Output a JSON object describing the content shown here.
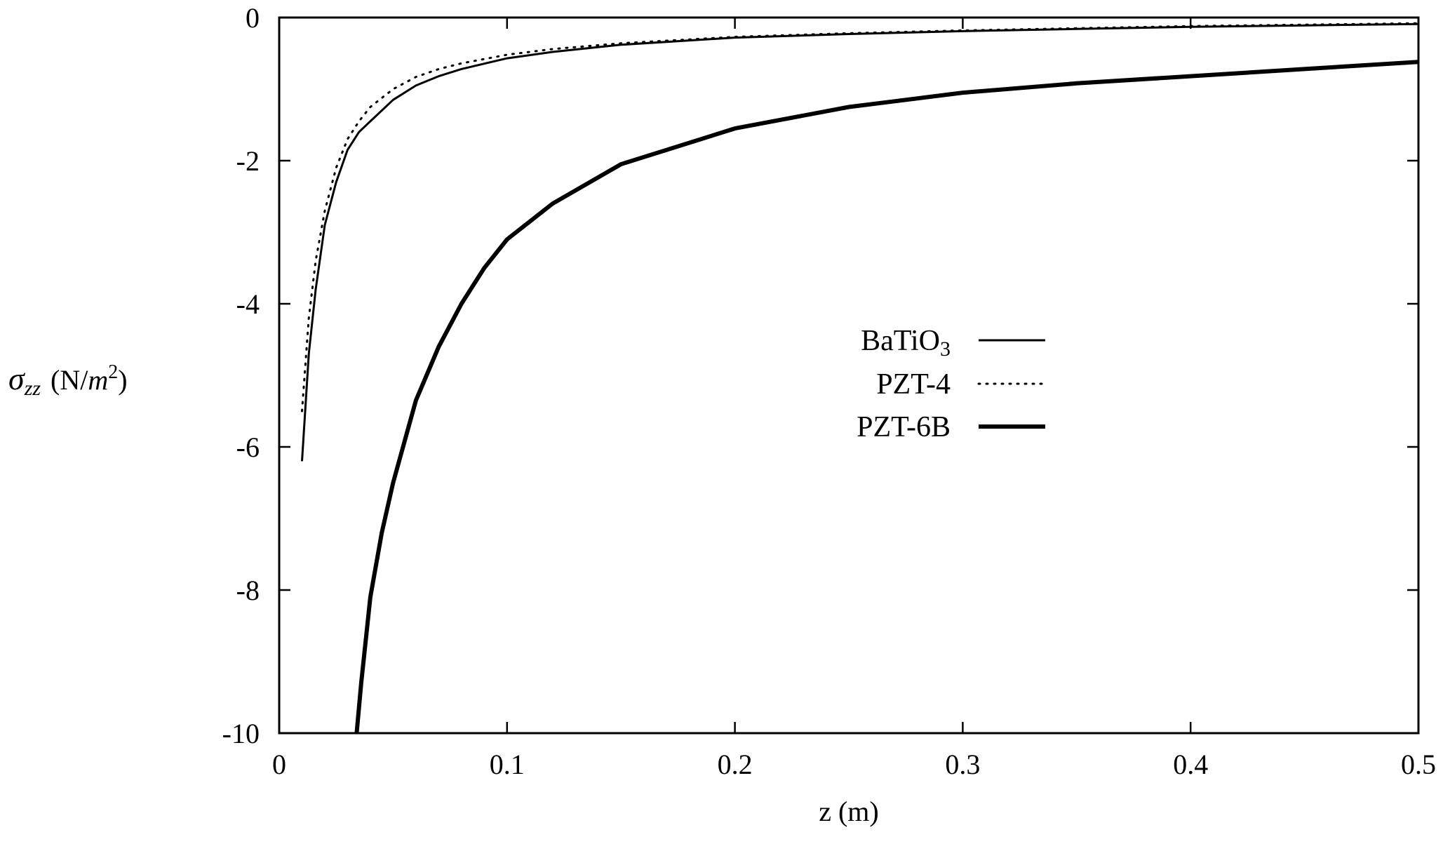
{
  "chart_data": {
    "type": "line",
    "xlabel": "z (m)",
    "ylabel": {
      "sigma": "σ",
      "sub": "zz",
      "units_open": "(N/",
      "units_m": "m",
      "units_exp": "2",
      "units_close": ")"
    },
    "xlim": [
      0,
      0.5
    ],
    "ylim": [
      -10,
      0
    ],
    "x_ticks": [
      0,
      0.1,
      0.2,
      0.3,
      0.4,
      0.5
    ],
    "x_tick_labels": [
      "0",
      "0.1",
      "0.2",
      "0.3",
      "0.4",
      "0.5"
    ],
    "y_ticks": [
      0,
      -2,
      -4,
      -6,
      -8,
      -10
    ],
    "y_tick_labels": [
      "0",
      "-2",
      "-4",
      "-6",
      "-8",
      "-10"
    ],
    "grid": false,
    "legend_position": "center-right",
    "series": [
      {
        "name": "BaTiO3",
        "name_main": "BaTiO",
        "name_sub": "3",
        "style": "solid-thin",
        "color": "#000000",
        "x": [
          0.01,
          0.013,
          0.016,
          0.02,
          0.025,
          0.03,
          0.035,
          0.04,
          0.05,
          0.06,
          0.07,
          0.08,
          0.1,
          0.12,
          0.15,
          0.2,
          0.25,
          0.3,
          0.35,
          0.4,
          0.45,
          0.5
        ],
        "y": [
          -6.2,
          -4.7,
          -3.8,
          -2.9,
          -2.3,
          -1.85,
          -1.6,
          -1.45,
          -1.15,
          -0.95,
          -0.82,
          -0.72,
          -0.57,
          -0.48,
          -0.38,
          -0.28,
          -0.23,
          -0.19,
          -0.16,
          -0.13,
          -0.11,
          -0.09
        ]
      },
      {
        "name": "PZT-4",
        "name_main": "PZT-4",
        "name_sub": "",
        "style": "dotted",
        "color": "#000000",
        "x": [
          0.01,
          0.013,
          0.016,
          0.02,
          0.025,
          0.03,
          0.035,
          0.04,
          0.05,
          0.06,
          0.07,
          0.08,
          0.1,
          0.12,
          0.15,
          0.2,
          0.25,
          0.3,
          0.35,
          0.4,
          0.45,
          0.5
        ],
        "y": [
          -5.5,
          -4.2,
          -3.4,
          -2.7,
          -2.1,
          -1.7,
          -1.45,
          -1.25,
          -1.0,
          -0.83,
          -0.72,
          -0.64,
          -0.52,
          -0.44,
          -0.36,
          -0.27,
          -0.22,
          -0.18,
          -0.15,
          -0.12,
          -0.1,
          -0.08
        ]
      },
      {
        "name": "PZT-6B",
        "name_main": "PZT-6B",
        "name_sub": "",
        "style": "solid-thick",
        "color": "#000000",
        "x": [
          0.034,
          0.036,
          0.04,
          0.045,
          0.05,
          0.06,
          0.07,
          0.08,
          0.09,
          0.1,
          0.12,
          0.15,
          0.2,
          0.25,
          0.3,
          0.35,
          0.4,
          0.45,
          0.5
        ],
        "y": [
          -10.0,
          -9.3,
          -8.1,
          -7.2,
          -6.5,
          -5.35,
          -4.6,
          -4.0,
          -3.5,
          -3.1,
          -2.6,
          -2.05,
          -1.55,
          -1.25,
          -1.05,
          -0.92,
          -0.82,
          -0.72,
          -0.62
        ]
      }
    ]
  }
}
